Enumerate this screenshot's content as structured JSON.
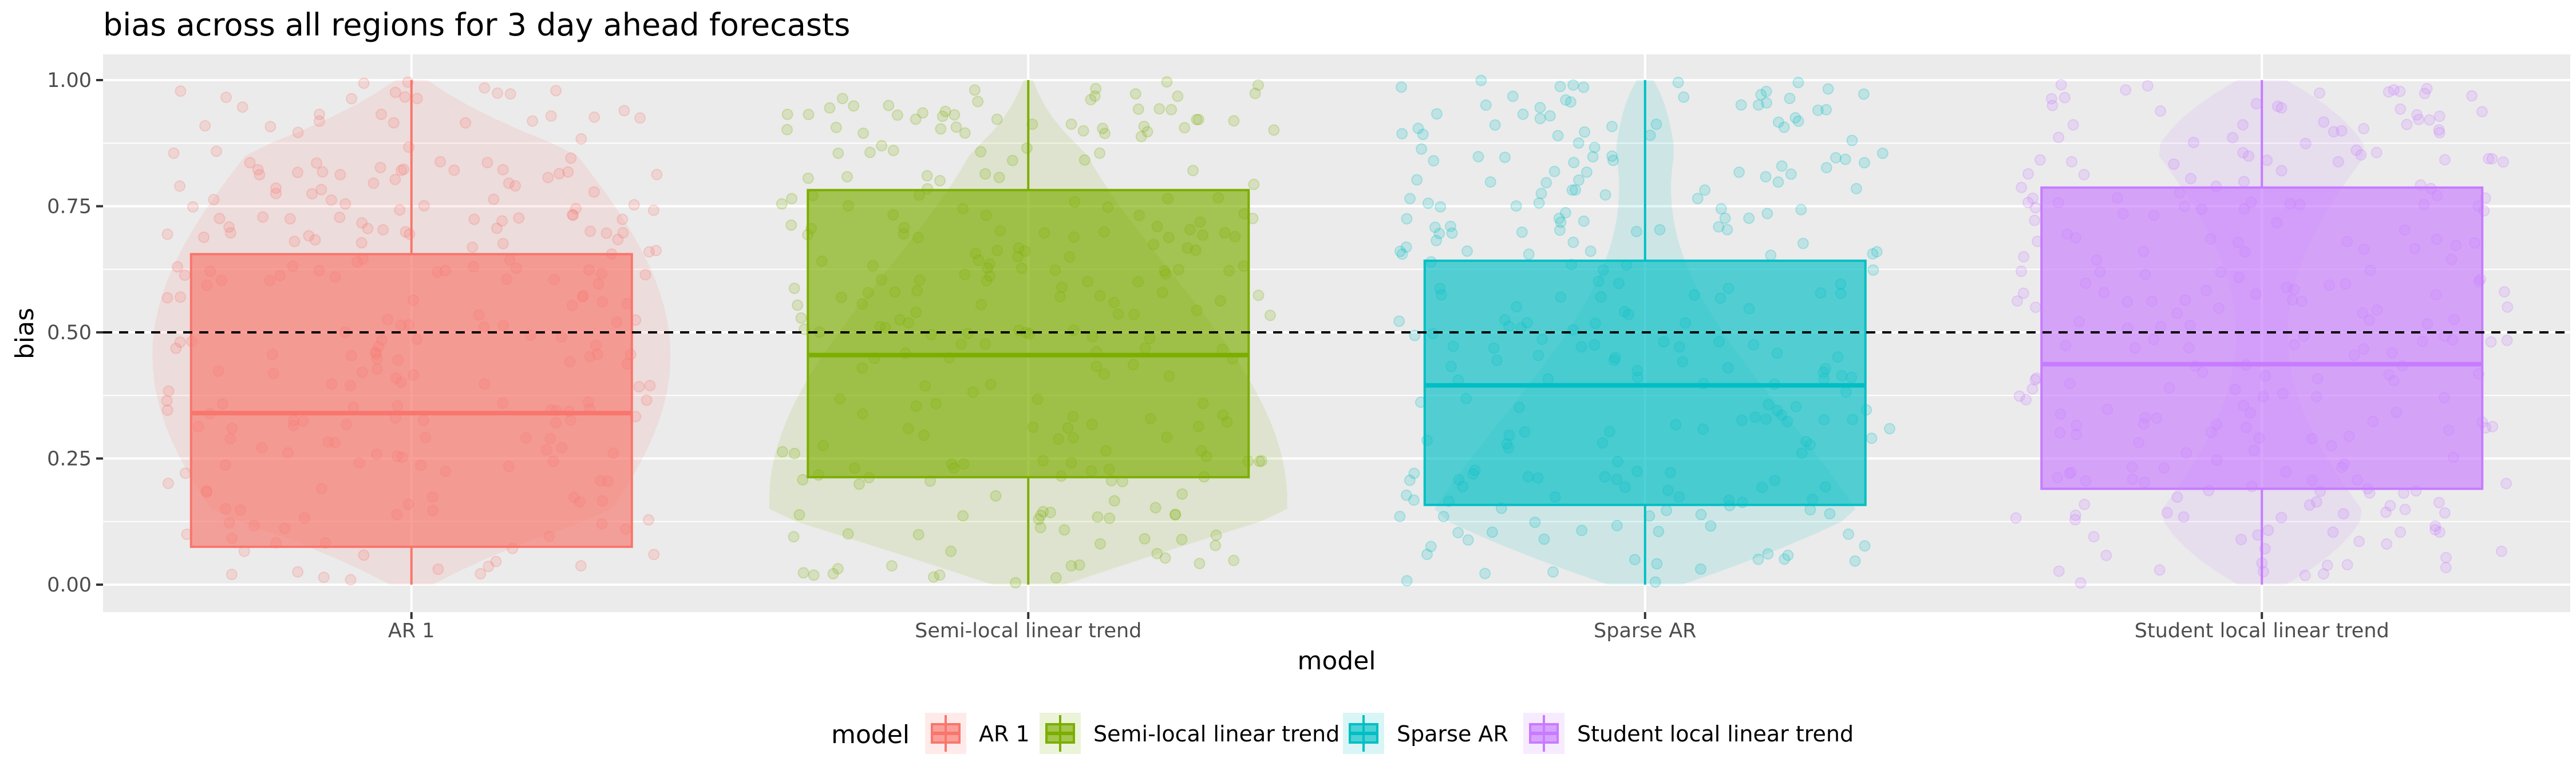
{
  "chart_data": {
    "type": "box",
    "title": "bias across all regions for 3 day ahead forecasts",
    "xlabel": "model",
    "ylabel": "bias",
    "ylim": [
      0,
      1
    ],
    "yticks": [
      "0.00",
      "0.25",
      "0.50",
      "0.75",
      "1.00"
    ],
    "reference_line": {
      "y": 0.5,
      "style": "dashed"
    },
    "grid": true,
    "legend": {
      "title": "model",
      "position": "bottom"
    },
    "categories": [
      "AR 1",
      "Semi-local linear trend",
      "Sparse AR",
      "Student local linear trend"
    ],
    "series": [
      {
        "name": "AR 1",
        "color": "#F8766D",
        "min": 0.0,
        "q1": 0.075,
        "median": 0.34,
        "q3": 0.655,
        "max": 1.0
      },
      {
        "name": "Semi-local linear trend",
        "color": "#7CAE00",
        "min": 0.0,
        "q1": 0.213,
        "median": 0.455,
        "q3": 0.782,
        "max": 1.0
      },
      {
        "name": "Sparse AR",
        "color": "#00BFC4",
        "min": 0.0,
        "q1": 0.158,
        "median": 0.395,
        "q3": 0.642,
        "max": 1.0
      },
      {
        "name": "Student local linear trend",
        "color": "#C77CFF",
        "min": 0.0,
        "q1": 0.19,
        "median": 0.437,
        "q3": 0.787,
        "max": 1.0
      }
    ]
  }
}
